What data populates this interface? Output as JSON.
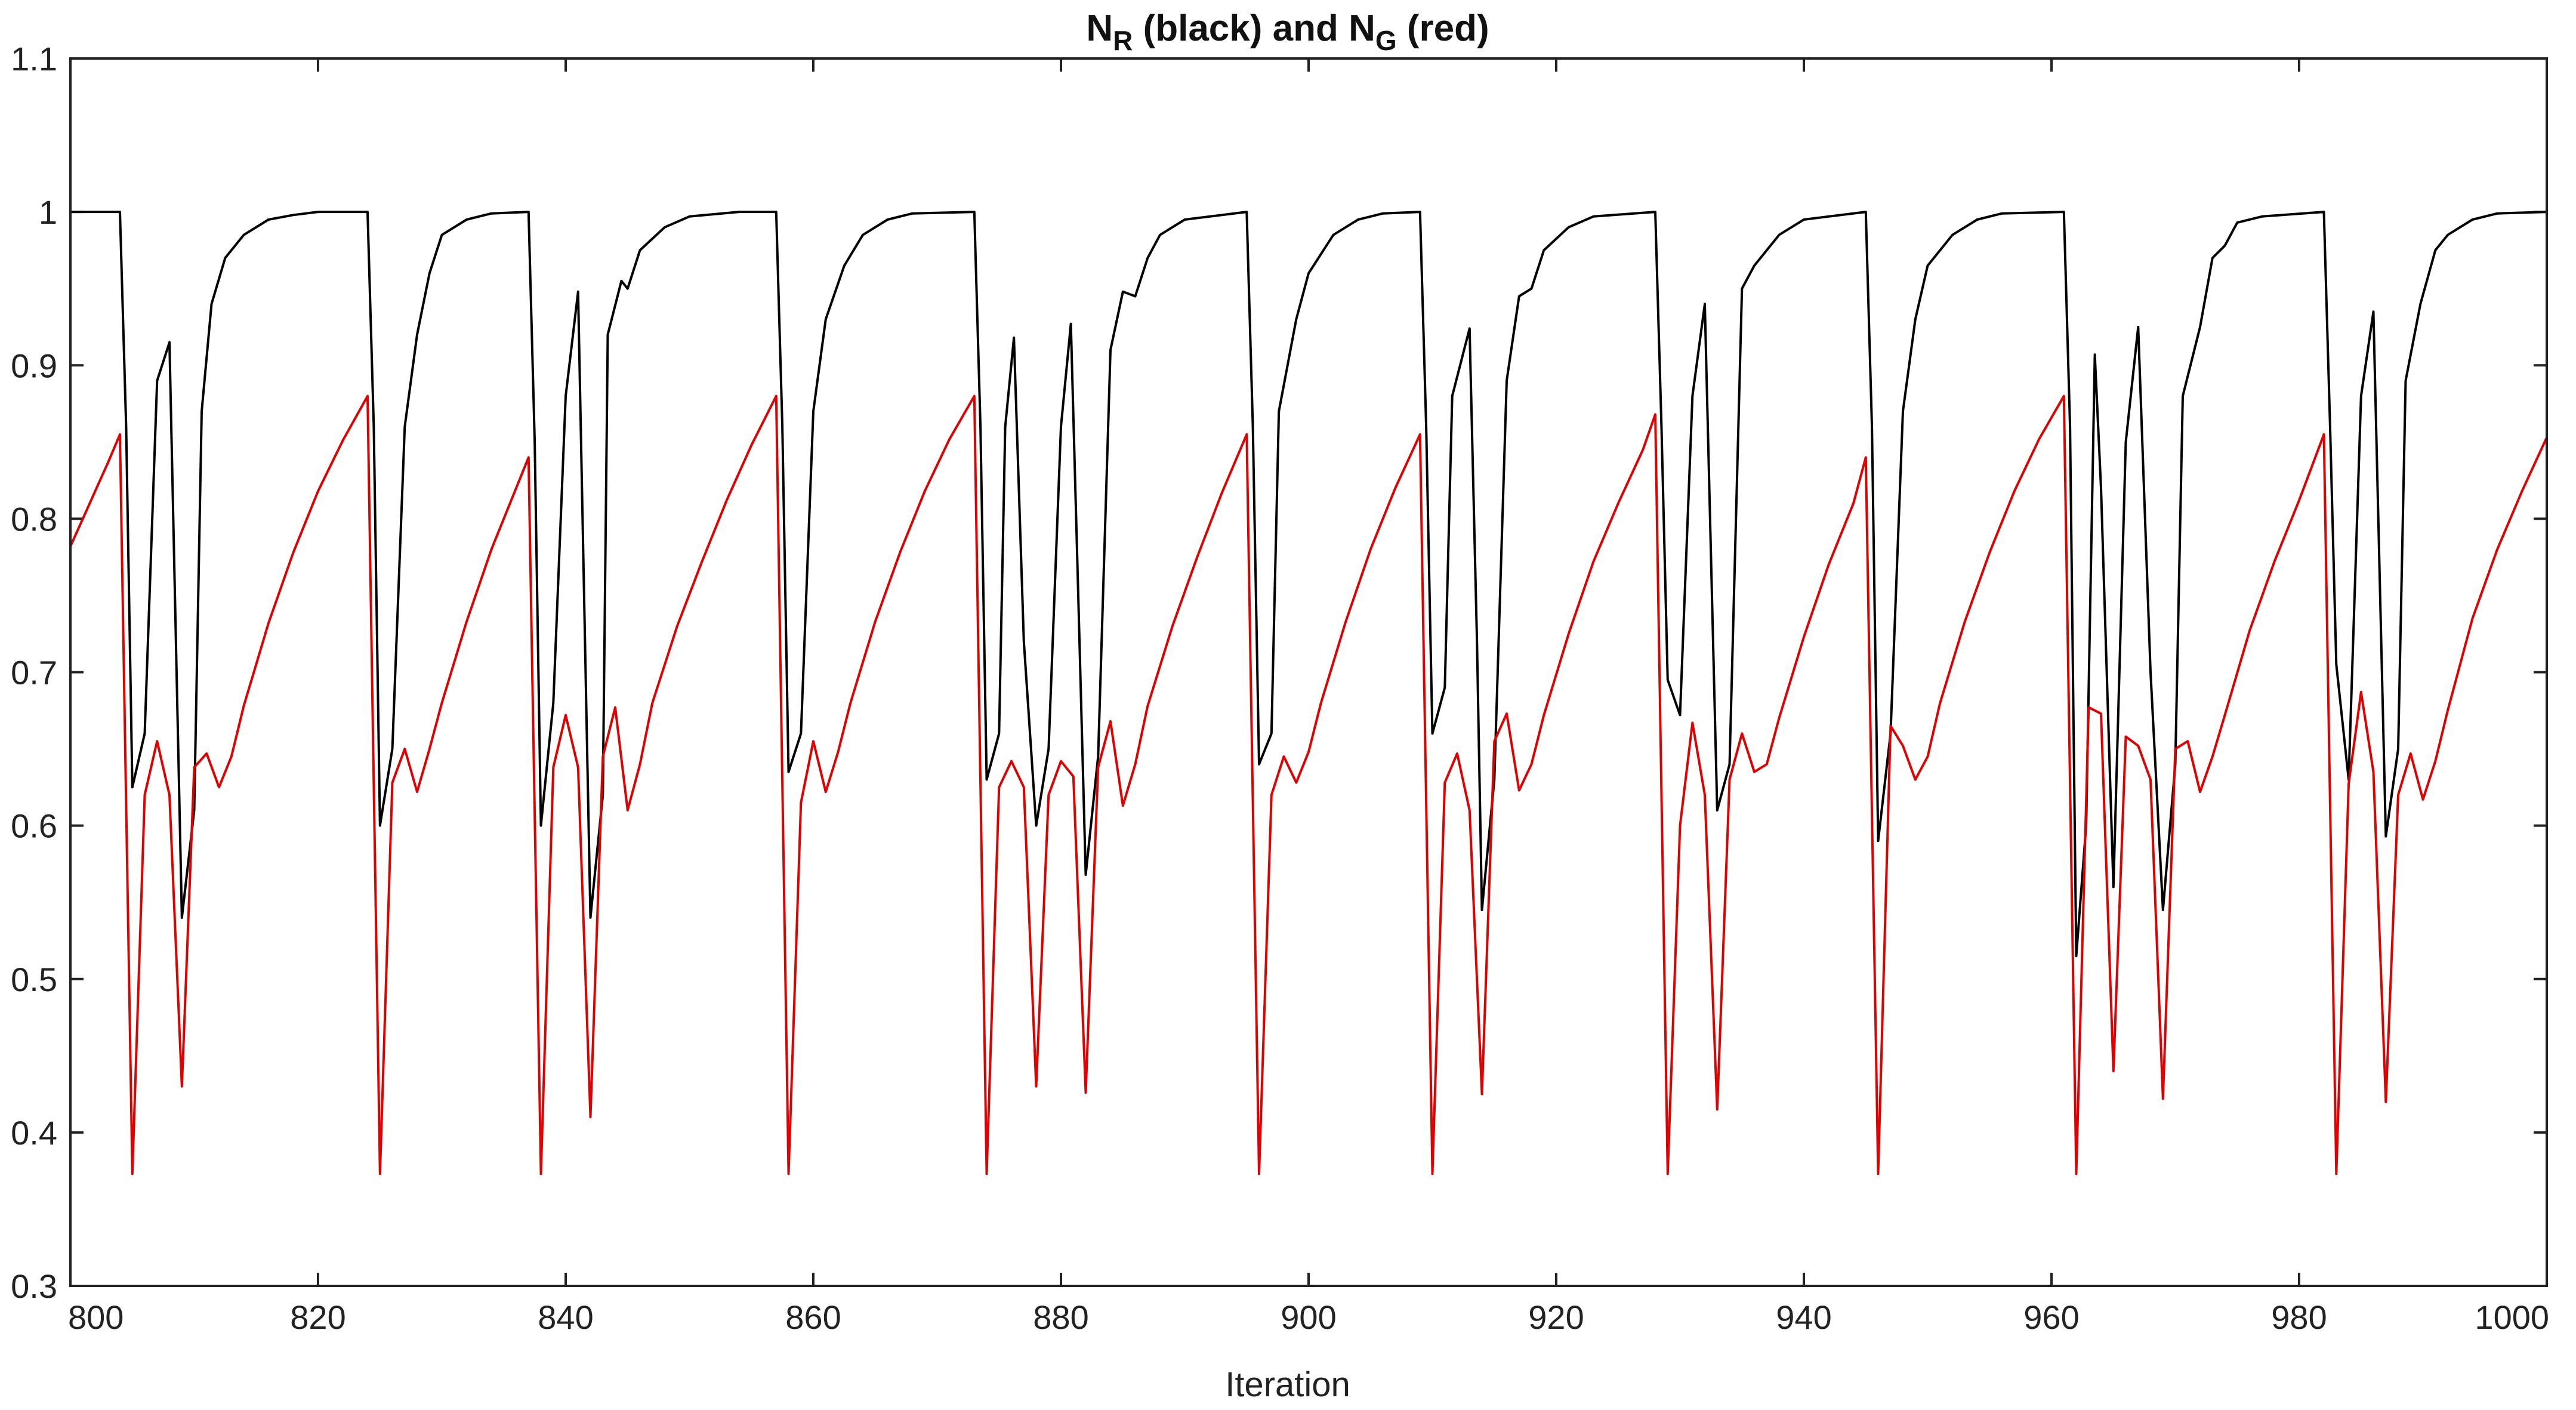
{
  "chart_data": {
    "type": "line",
    "title": {
      "parts": [
        {
          "text": "N",
          "sub": false
        },
        {
          "text": "R",
          "sub": true
        },
        {
          "text": " (black) and N",
          "sub": false
        },
        {
          "text": "G",
          "sub": true
        },
        {
          "text": " (red)",
          "sub": false
        }
      ]
    },
    "xlabel": "Iteration",
    "ylabel": "",
    "xlim": [
      800,
      1000
    ],
    "ylim": [
      0.3,
      1.1
    ],
    "xticks": [
      800,
      820,
      840,
      860,
      880,
      900,
      920,
      940,
      960,
      980,
      1000
    ],
    "xtick_labels": [
      "800",
      "820",
      "840",
      "860",
      "880",
      "900",
      "920",
      "940",
      "960",
      "980",
      "1000"
    ],
    "yticks": [
      0.3,
      0.4,
      0.5,
      0.6,
      0.7,
      0.8,
      0.9,
      1.0,
      1.1
    ],
    "ytick_labels": [
      "0.3",
      "0.4",
      "0.5",
      "0.6",
      "0.7",
      "0.8",
      "0.9",
      "1",
      "1.1"
    ],
    "grid": false,
    "series": [
      {
        "color": "#000000",
        "points": [
          [
            800,
            1.0
          ],
          [
            802,
            1.0
          ],
          [
            804,
            1.0
          ],
          [
            804.5,
            0.86
          ],
          [
            805,
            0.625
          ],
          [
            806,
            0.66
          ],
          [
            807,
            0.89
          ],
          [
            808,
            0.915
          ],
          [
            809,
            0.54
          ],
          [
            810,
            0.61
          ],
          [
            810.6,
            0.87
          ],
          [
            811.4,
            0.94
          ],
          [
            812.5,
            0.97
          ],
          [
            814,
            0.985
          ],
          [
            816,
            0.995
          ],
          [
            818,
            0.998
          ],
          [
            820,
            1.0
          ],
          [
            824,
            1.0
          ],
          [
            824.5,
            0.86
          ],
          [
            825,
            0.6
          ],
          [
            826,
            0.65
          ],
          [
            827,
            0.86
          ],
          [
            828,
            0.92
          ],
          [
            829,
            0.96
          ],
          [
            830,
            0.985
          ],
          [
            832,
            0.995
          ],
          [
            834,
            0.999
          ],
          [
            837,
            1.0
          ],
          [
            837.5,
            0.85
          ],
          [
            838,
            0.6
          ],
          [
            839,
            0.68
          ],
          [
            840,
            0.88
          ],
          [
            841,
            0.948
          ],
          [
            842,
            0.54
          ],
          [
            843,
            0.62
          ],
          [
            843.4,
            0.92
          ],
          [
            844.5,
            0.955
          ],
          [
            845,
            0.95
          ],
          [
            846,
            0.975
          ],
          [
            848,
            0.99
          ],
          [
            850,
            0.997
          ],
          [
            854,
            1.0
          ],
          [
            857,
            1.0
          ],
          [
            857.5,
            0.86
          ],
          [
            858,
            0.635
          ],
          [
            859,
            0.66
          ],
          [
            860,
            0.87
          ],
          [
            861,
            0.93
          ],
          [
            862.5,
            0.965
          ],
          [
            864,
            0.985
          ],
          [
            866,
            0.995
          ],
          [
            868,
            0.999
          ],
          [
            873,
            1.0
          ],
          [
            873.5,
            0.86
          ],
          [
            874,
            0.63
          ],
          [
            875,
            0.66
          ],
          [
            875.5,
            0.86
          ],
          [
            876.2,
            0.918
          ],
          [
            877,
            0.72
          ],
          [
            878,
            0.6
          ],
          [
            879,
            0.65
          ],
          [
            880,
            0.86
          ],
          [
            880.8,
            0.927
          ],
          [
            881.4,
            0.75
          ],
          [
            882,
            0.568
          ],
          [
            883,
            0.645
          ],
          [
            884,
            0.91
          ],
          [
            885,
            0.948
          ],
          [
            886,
            0.945
          ],
          [
            887,
            0.97
          ],
          [
            888,
            0.985
          ],
          [
            890,
            0.995
          ],
          [
            895,
            1.0
          ],
          [
            895.5,
            0.86
          ],
          [
            896,
            0.64
          ],
          [
            897,
            0.66
          ],
          [
            897.6,
            0.87
          ],
          [
            899,
            0.93
          ],
          [
            900,
            0.96
          ],
          [
            902,
            0.985
          ],
          [
            904,
            0.995
          ],
          [
            906,
            0.999
          ],
          [
            909,
            1.0
          ],
          [
            909.5,
            0.86
          ],
          [
            910,
            0.66
          ],
          [
            911,
            0.69
          ],
          [
            911.6,
            0.88
          ],
          [
            913,
            0.924
          ],
          [
            913.6,
            0.72
          ],
          [
            914,
            0.545
          ],
          [
            915,
            0.63
          ],
          [
            916,
            0.89
          ],
          [
            917,
            0.945
          ],
          [
            918,
            0.95
          ],
          [
            919,
            0.975
          ],
          [
            921,
            0.99
          ],
          [
            923,
            0.997
          ],
          [
            928,
            1.0
          ],
          [
            928.5,
            0.86
          ],
          [
            929,
            0.695
          ],
          [
            930,
            0.672
          ],
          [
            931,
            0.88
          ],
          [
            932,
            0.94
          ],
          [
            933,
            0.61
          ],
          [
            934,
            0.64
          ],
          [
            935,
            0.95
          ],
          [
            936,
            0.965
          ],
          [
            938,
            0.985
          ],
          [
            940,
            0.995
          ],
          [
            945,
            1.0
          ],
          [
            945.5,
            0.86
          ],
          [
            946,
            0.59
          ],
          [
            947,
            0.66
          ],
          [
            948,
            0.87
          ],
          [
            949,
            0.93
          ],
          [
            950,
            0.965
          ],
          [
            952,
            0.985
          ],
          [
            954,
            0.995
          ],
          [
            956,
            0.999
          ],
          [
            961,
            1.0
          ],
          [
            961.5,
            0.86
          ],
          [
            962,
            0.515
          ],
          [
            962.8,
            0.6
          ],
          [
            963.5,
            0.907
          ],
          [
            964,
            0.82
          ],
          [
            965,
            0.56
          ],
          [
            966,
            0.85
          ],
          [
            967,
            0.925
          ],
          [
            968,
            0.7
          ],
          [
            969,
            0.545
          ],
          [
            970,
            0.64
          ],
          [
            970.6,
            0.88
          ],
          [
            972,
            0.925
          ],
          [
            973,
            0.97
          ],
          [
            974,
            0.978
          ],
          [
            975,
            0.993
          ],
          [
            977,
            0.997
          ],
          [
            982,
            1.0
          ],
          [
            982.5,
            0.86
          ],
          [
            983,
            0.705
          ],
          [
            984,
            0.63
          ],
          [
            985,
            0.88
          ],
          [
            986,
            0.935
          ],
          [
            987,
            0.593
          ],
          [
            988,
            0.65
          ],
          [
            988.6,
            0.89
          ],
          [
            989.8,
            0.94
          ],
          [
            991,
            0.975
          ],
          [
            992,
            0.985
          ],
          [
            994,
            0.995
          ],
          [
            996,
            0.999
          ],
          [
            1000,
            1.0
          ]
        ]
      },
      {
        "color": "#e00000",
        "points": [
          [
            800,
            0.782
          ],
          [
            801,
            0.8
          ],
          [
            802,
            0.818
          ],
          [
            803,
            0.836
          ],
          [
            804,
            0.855
          ],
          [
            805,
            0.373
          ],
          [
            806,
            0.62
          ],
          [
            807,
            0.655
          ],
          [
            808,
            0.62
          ],
          [
            809,
            0.43
          ],
          [
            810,
            0.638
          ],
          [
            811,
            0.647
          ],
          [
            812,
            0.625
          ],
          [
            813,
            0.645
          ],
          [
            814,
            0.678
          ],
          [
            816,
            0.732
          ],
          [
            818,
            0.778
          ],
          [
            820,
            0.818
          ],
          [
            822,
            0.851
          ],
          [
            824,
            0.88
          ],
          [
            825,
            0.373
          ],
          [
            826,
            0.628
          ],
          [
            827,
            0.65
          ],
          [
            828,
            0.622
          ],
          [
            829,
            0.65
          ],
          [
            830,
            0.68
          ],
          [
            832,
            0.733
          ],
          [
            834,
            0.78
          ],
          [
            836,
            0.82
          ],
          [
            837,
            0.84
          ],
          [
            838,
            0.373
          ],
          [
            839,
            0.638
          ],
          [
            840,
            0.672
          ],
          [
            841,
            0.638
          ],
          [
            842,
            0.41
          ],
          [
            843,
            0.645
          ],
          [
            844,
            0.677
          ],
          [
            845,
            0.61
          ],
          [
            846,
            0.64
          ],
          [
            847,
            0.68
          ],
          [
            849,
            0.73
          ],
          [
            851,
            0.772
          ],
          [
            853,
            0.812
          ],
          [
            855,
            0.848
          ],
          [
            857,
            0.88
          ],
          [
            858,
            0.373
          ],
          [
            859,
            0.615
          ],
          [
            860,
            0.655
          ],
          [
            861,
            0.622
          ],
          [
            862,
            0.648
          ],
          [
            863,
            0.68
          ],
          [
            865,
            0.733
          ],
          [
            867,
            0.778
          ],
          [
            869,
            0.818
          ],
          [
            871,
            0.852
          ],
          [
            873,
            0.88
          ],
          [
            874,
            0.373
          ],
          [
            875,
            0.625
          ],
          [
            876,
            0.642
          ],
          [
            877,
            0.625
          ],
          [
            878,
            0.43
          ],
          [
            879,
            0.62
          ],
          [
            880,
            0.642
          ],
          [
            881,
            0.632
          ],
          [
            882,
            0.426
          ],
          [
            883,
            0.638
          ],
          [
            884,
            0.668
          ],
          [
            885,
            0.613
          ],
          [
            886,
            0.64
          ],
          [
            887,
            0.678
          ],
          [
            889,
            0.73
          ],
          [
            891,
            0.775
          ],
          [
            893,
            0.817
          ],
          [
            895,
            0.855
          ],
          [
            896,
            0.373
          ],
          [
            897,
            0.62
          ],
          [
            898,
            0.645
          ],
          [
            899,
            0.628
          ],
          [
            900,
            0.648
          ],
          [
            901,
            0.68
          ],
          [
            903,
            0.733
          ],
          [
            905,
            0.78
          ],
          [
            907,
            0.82
          ],
          [
            909,
            0.855
          ],
          [
            910,
            0.373
          ],
          [
            911,
            0.628
          ],
          [
            912,
            0.647
          ],
          [
            913,
            0.61
          ],
          [
            914,
            0.425
          ],
          [
            915,
            0.655
          ],
          [
            916,
            0.673
          ],
          [
            917,
            0.623
          ],
          [
            918,
            0.64
          ],
          [
            919,
            0.672
          ],
          [
            921,
            0.725
          ],
          [
            923,
            0.772
          ],
          [
            925,
            0.81
          ],
          [
            927,
            0.845
          ],
          [
            928,
            0.868
          ],
          [
            929,
            0.373
          ],
          [
            930,
            0.6
          ],
          [
            931,
            0.667
          ],
          [
            932,
            0.62
          ],
          [
            933,
            0.415
          ],
          [
            934,
            0.63
          ],
          [
            935,
            0.66
          ],
          [
            936,
            0.635
          ],
          [
            937,
            0.64
          ],
          [
            938,
            0.67
          ],
          [
            940,
            0.723
          ],
          [
            942,
            0.77
          ],
          [
            944,
            0.81
          ],
          [
            945,
            0.84
          ],
          [
            946,
            0.373
          ],
          [
            947,
            0.665
          ],
          [
            948,
            0.652
          ],
          [
            949,
            0.63
          ],
          [
            950,
            0.645
          ],
          [
            951,
            0.68
          ],
          [
            953,
            0.733
          ],
          [
            955,
            0.778
          ],
          [
            957,
            0.818
          ],
          [
            959,
            0.852
          ],
          [
            961,
            0.88
          ],
          [
            962,
            0.373
          ],
          [
            963,
            0.677
          ],
          [
            964,
            0.673
          ],
          [
            965,
            0.44
          ],
          [
            966,
            0.658
          ],
          [
            967,
            0.652
          ],
          [
            968,
            0.63
          ],
          [
            969,
            0.422
          ],
          [
            970,
            0.65
          ],
          [
            971,
            0.655
          ],
          [
            972,
            0.622
          ],
          [
            973,
            0.645
          ],
          [
            974,
            0.672
          ],
          [
            976,
            0.727
          ],
          [
            978,
            0.772
          ],
          [
            980,
            0.812
          ],
          [
            982,
            0.855
          ],
          [
            983,
            0.373
          ],
          [
            984,
            0.627
          ],
          [
            985,
            0.687
          ],
          [
            986,
            0.635
          ],
          [
            987,
            0.42
          ],
          [
            988,
            0.62
          ],
          [
            989,
            0.647
          ],
          [
            990,
            0.617
          ],
          [
            991,
            0.642
          ],
          [
            992,
            0.675
          ],
          [
            994,
            0.735
          ],
          [
            996,
            0.78
          ],
          [
            998,
            0.818
          ],
          [
            1000,
            0.853
          ]
        ]
      }
    ]
  }
}
